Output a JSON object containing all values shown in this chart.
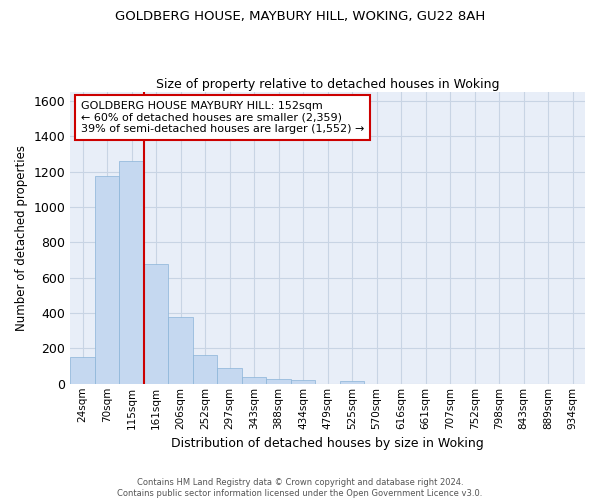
{
  "title1": "GOLDBERG HOUSE, MAYBURY HILL, WOKING, GU22 8AH",
  "title2": "Size of property relative to detached houses in Woking",
  "xlabel": "Distribution of detached houses by size in Woking",
  "ylabel": "Number of detached properties",
  "categories": [
    "24sqm",
    "70sqm",
    "115sqm",
    "161sqm",
    "206sqm",
    "252sqm",
    "297sqm",
    "343sqm",
    "388sqm",
    "434sqm",
    "479sqm",
    "525sqm",
    "570sqm",
    "616sqm",
    "661sqm",
    "707sqm",
    "752sqm",
    "798sqm",
    "843sqm",
    "889sqm",
    "934sqm"
  ],
  "bar_heights": [
    150,
    1175,
    1260,
    680,
    375,
    160,
    90,
    38,
    27,
    20,
    0,
    15,
    0,
    0,
    0,
    0,
    0,
    0,
    0,
    0,
    0
  ],
  "bar_color": "#c5d8f0",
  "bar_edge_color": "#8ab4d8",
  "grid_color": "#c8d4e4",
  "background_color": "#e8eef8",
  "vline_color": "#cc0000",
  "annotation_line1": "GOLDBERG HOUSE MAYBURY HILL: 152sqm",
  "annotation_line2": "← 60% of detached houses are smaller (2,359)",
  "annotation_line3": "39% of semi-detached houses are larger (1,552) →",
  "annotation_box_edgecolor": "#cc0000",
  "ylim": [
    0,
    1650
  ],
  "yticks": [
    0,
    200,
    400,
    600,
    800,
    1000,
    1200,
    1400,
    1600
  ],
  "footnote1": "Contains HM Land Registry data © Crown copyright and database right 2024.",
  "footnote2": "Contains public sector information licensed under the Open Government Licence v3.0."
}
